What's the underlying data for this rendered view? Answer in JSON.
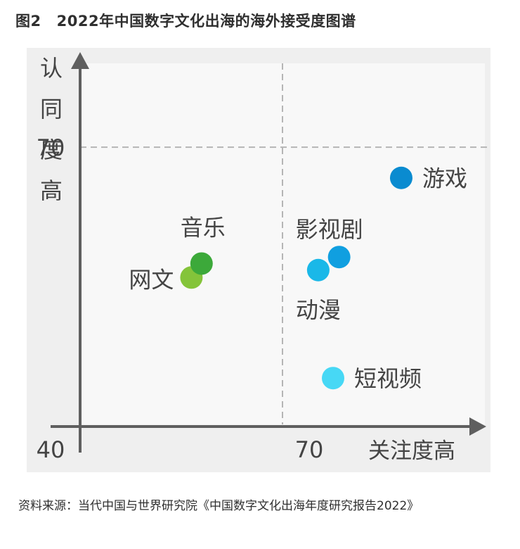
{
  "figure": {
    "number": "图2",
    "title": "2022年中国数字文化出海的海外接受度图谱"
  },
  "source": "资料来源：当代中国与世界研究院《中国数字文化出海年度研究报告2022》",
  "colors": {
    "panel_bg": "#efefef",
    "inner_bg": "#f8f8f8",
    "axis": "#5f5f5f",
    "dashed": "#b5b5b5",
    "text": "#444444"
  },
  "chart_data": {
    "type": "scatter",
    "xlabel": "关注度高",
    "ylabel": "认同度高",
    "origin_label": "40",
    "xlim": [
      40,
      100
    ],
    "ylim": [
      40,
      79
    ],
    "x_threshold": 70,
    "y_threshold": 70,
    "x_tick_label": "70",
    "y_tick_label": "70",
    "points": [
      {
        "name": "网文",
        "x": 56.5,
        "y": 56.0,
        "color": "#84c43a"
      },
      {
        "name": "音乐",
        "x": 58.0,
        "y": 57.5,
        "color": "#3ca93a"
      },
      {
        "name": "动漫",
        "x": 75.3,
        "y": 56.8,
        "color": "#1ab8e8"
      },
      {
        "name": "影视剧",
        "x": 78.4,
        "y": 58.2,
        "color": "#109fe0"
      },
      {
        "name": "游戏",
        "x": 87.6,
        "y": 66.7,
        "color": "#0a8bd0"
      },
      {
        "name": "短视频",
        "x": 77.5,
        "y": 45.2,
        "color": "#47d8f5"
      }
    ]
  }
}
